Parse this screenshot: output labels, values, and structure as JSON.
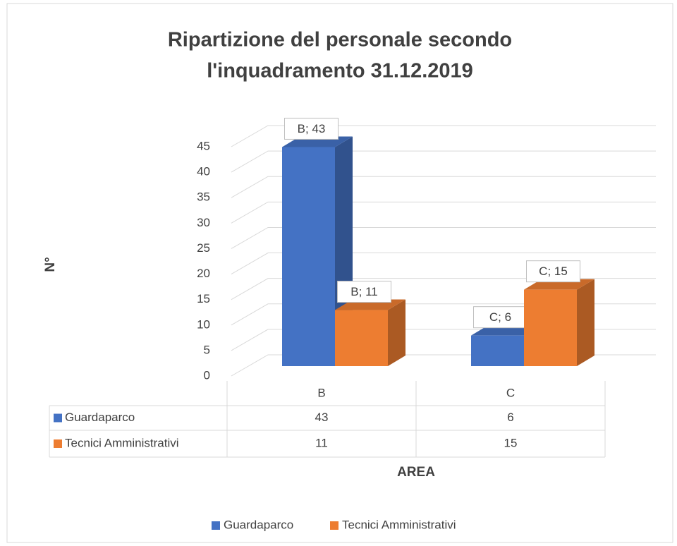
{
  "chart_data": {
    "type": "bar3d",
    "title": [
      "Ripartizione del personale secondo",
      "l'inquadramento 31.12.2019"
    ],
    "categories": [
      "B",
      "C"
    ],
    "series": [
      {
        "name": "Guardaparco",
        "color": "#4472c4",
        "values": [
          43,
          6
        ],
        "value_labels": [
          "B; 43",
          "C; 6"
        ]
      },
      {
        "name": "Tecnici Amministrativi",
        "color": "#ed7d31",
        "values": [
          11,
          15
        ],
        "value_labels": [
          "B; 11",
          "C; 15"
        ]
      }
    ],
    "ylim": [
      0,
      45
    ],
    "yticks": [
      0,
      5,
      10,
      15,
      20,
      25,
      30,
      35,
      40,
      45
    ],
    "y_label": "N°",
    "x_label": "AREA",
    "grid": true,
    "legend": "bottom"
  }
}
